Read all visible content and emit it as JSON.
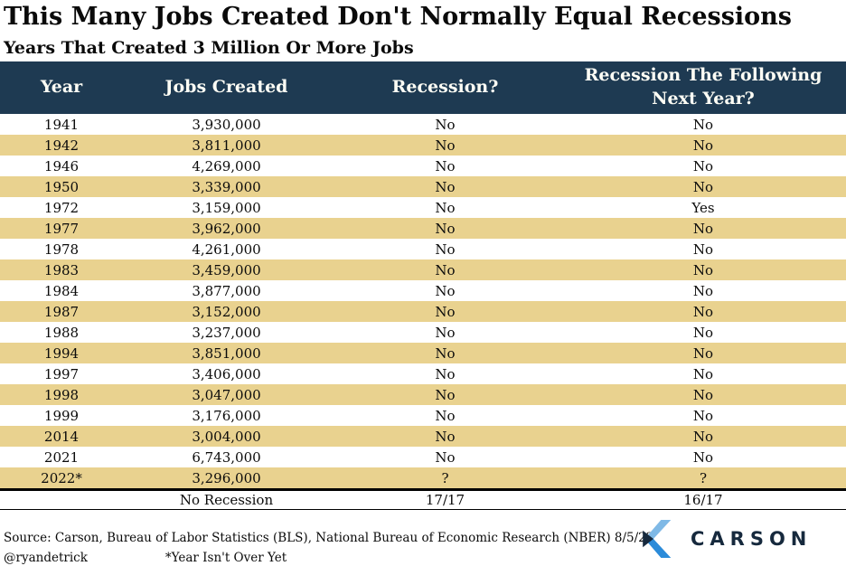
{
  "title": "This Many Jobs Created Don't Normally Equal Recessions",
  "subtitle": "Years That Created 3 Million Or More Jobs",
  "chart_data": {
    "type": "table",
    "title": "This Many Jobs Created Don't Normally Equal Recessions",
    "subtitle": "Years That Created 3 Million Or More Jobs",
    "columns": [
      "Year",
      "Jobs Created",
      "Recession?",
      "Recession The Following Next Year?"
    ],
    "rows": [
      [
        "1941",
        "3,930,000",
        "No",
        "No"
      ],
      [
        "1942",
        "3,811,000",
        "No",
        "No"
      ],
      [
        "1946",
        "4,269,000",
        "No",
        "No"
      ],
      [
        "1950",
        "3,339,000",
        "No",
        "No"
      ],
      [
        "1972",
        "3,159,000",
        "No",
        "Yes"
      ],
      [
        "1977",
        "3,962,000",
        "No",
        "No"
      ],
      [
        "1978",
        "4,261,000",
        "No",
        "No"
      ],
      [
        "1983",
        "3,459,000",
        "No",
        "No"
      ],
      [
        "1984",
        "3,877,000",
        "No",
        "No"
      ],
      [
        "1987",
        "3,152,000",
        "No",
        "No"
      ],
      [
        "1988",
        "3,237,000",
        "No",
        "No"
      ],
      [
        "1994",
        "3,851,000",
        "No",
        "No"
      ],
      [
        "1997",
        "3,406,000",
        "No",
        "No"
      ],
      [
        "1998",
        "3,047,000",
        "No",
        "No"
      ],
      [
        "1999",
        "3,176,000",
        "No",
        "No"
      ],
      [
        "2014",
        "3,004,000",
        "No",
        "No"
      ],
      [
        "2021",
        "6,743,000",
        "No",
        "No"
      ],
      [
        "2022*",
        "3,296,000",
        "?",
        "?"
      ]
    ],
    "summary_row": [
      "",
      "No Recession",
      "17/17",
      "16/17"
    ]
  },
  "footer": {
    "source": "Source: Carson, Bureau of Labor Statistics (BLS), National Bureau of Economic Research (NBER) 8/5/22",
    "handle": "@ryandetrick",
    "footnote": "*Year Isn't Over Yet",
    "logo_text": "CARSON"
  },
  "colors": {
    "header_bg": "#1e3a52",
    "row_alt_tan": "#e9d28f",
    "logo_navy": "#16293d",
    "logo_light_blue": "#7fb9e6",
    "logo_blue": "#2b8bd9"
  }
}
